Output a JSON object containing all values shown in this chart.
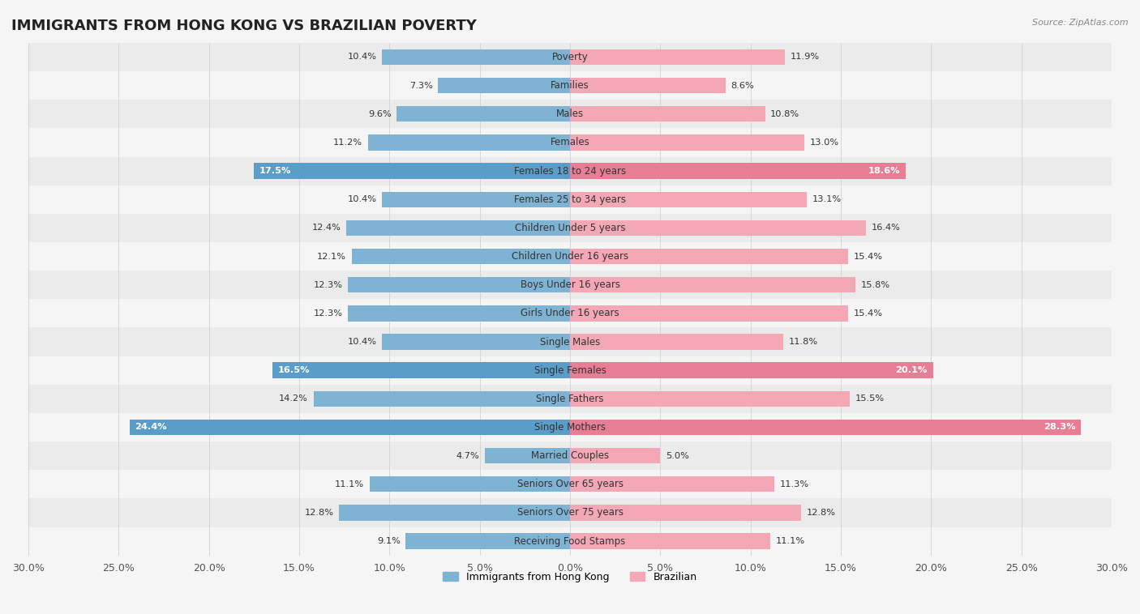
{
  "title": "IMMIGRANTS FROM HONG KONG VS BRAZILIAN POVERTY",
  "source": "Source: ZipAtlas.com",
  "categories": [
    "Poverty",
    "Families",
    "Males",
    "Females",
    "Females 18 to 24 years",
    "Females 25 to 34 years",
    "Children Under 5 years",
    "Children Under 16 years",
    "Boys Under 16 years",
    "Girls Under 16 years",
    "Single Males",
    "Single Females",
    "Single Fathers",
    "Single Mothers",
    "Married Couples",
    "Seniors Over 65 years",
    "Seniors Over 75 years",
    "Receiving Food Stamps"
  ],
  "hk_values": [
    10.4,
    7.3,
    9.6,
    11.2,
    17.5,
    10.4,
    12.4,
    12.1,
    12.3,
    12.3,
    10.4,
    16.5,
    14.2,
    24.4,
    4.7,
    11.1,
    12.8,
    9.1
  ],
  "br_values": [
    11.9,
    8.6,
    10.8,
    13.0,
    18.6,
    13.1,
    16.4,
    15.4,
    15.8,
    15.4,
    11.8,
    20.1,
    15.5,
    28.3,
    5.0,
    11.3,
    12.8,
    11.1
  ],
  "hk_color": "#7fb3d3",
  "br_color": "#f4a7b5",
  "hk_highlight_color": "#5b9dc9",
  "br_highlight_color": "#e87d96",
  "background_color": "#f5f5f5",
  "row_color_odd": "#ebebeb",
  "row_color_even": "#f5f5f5",
  "xlim": 30.0,
  "legend_hk": "Immigrants from Hong Kong",
  "legend_br": "Brazilian",
  "bar_height": 0.55,
  "title_fontsize": 13,
  "label_fontsize": 8.5,
  "value_fontsize": 8.2,
  "axis_fontsize": 9
}
